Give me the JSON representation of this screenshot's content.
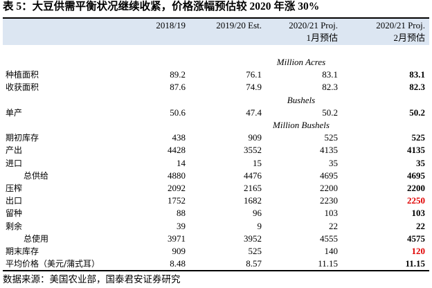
{
  "header": {
    "title": "表 5：大豆供需平衡状况继续收紧，价格涨幅预估较 2020 年涨 30%"
  },
  "table": {
    "columns": [
      [
        "2018/19"
      ],
      [
        "2019/20 Est."
      ],
      [
        "2020/21 Proj.",
        "1月预估"
      ],
      [
        "2020/21 Proj.",
        "2月预估"
      ]
    ],
    "header_color": "#dce6f2",
    "rows": [
      {
        "unit": "Million Acres"
      },
      {
        "label": "种植面积",
        "values": [
          "89.2",
          "76.1",
          "83.1",
          "83.1"
        ]
      },
      {
        "label": "收获面积",
        "values": [
          "87.6",
          "74.9",
          "82.3",
          "82.3"
        ]
      },
      {
        "unit": "Bushels"
      },
      {
        "label": "单产",
        "values": [
          "50.6",
          "47.4",
          "50.2",
          "50.2"
        ]
      },
      {
        "unit": "Million Bushels"
      },
      {
        "label": "期初库存",
        "values": [
          "438",
          "909",
          "525",
          "525"
        ]
      },
      {
        "label": "产出",
        "values": [
          "4428",
          "3552",
          "4135",
          "4135"
        ]
      },
      {
        "label": "进口",
        "values": [
          "14",
          "15",
          "35",
          "35"
        ]
      },
      {
        "label": "总供给",
        "indent": true,
        "values": [
          "4880",
          "4476",
          "4695",
          "4695"
        ]
      },
      {
        "label": "压榨",
        "values": [
          "2092",
          "2165",
          "2200",
          "2200"
        ]
      },
      {
        "label": "出口",
        "values": [
          "1752",
          "1682",
          "2230",
          "2250"
        ],
        "last_color": "#e00000"
      },
      {
        "label": "留种",
        "values": [
          "88",
          "96",
          "103",
          "103"
        ]
      },
      {
        "label": "剩余",
        "values": [
          "39",
          "9",
          "22",
          "22"
        ]
      },
      {
        "label": "总使用",
        "indent": true,
        "values": [
          "3971",
          "3952",
          "4555",
          "4575"
        ]
      },
      {
        "label": "期末库存",
        "values": [
          "909",
          "525",
          "140",
          "120"
        ],
        "last_color": "#e00000"
      },
      {
        "label": "平均价格（美元/蒲式耳）",
        "values": [
          "8.48",
          "8.57",
          "11.15",
          "11.15"
        ]
      }
    ]
  },
  "footer": {
    "source": "数据来源：美国农业部，国泰君安证券研究"
  }
}
